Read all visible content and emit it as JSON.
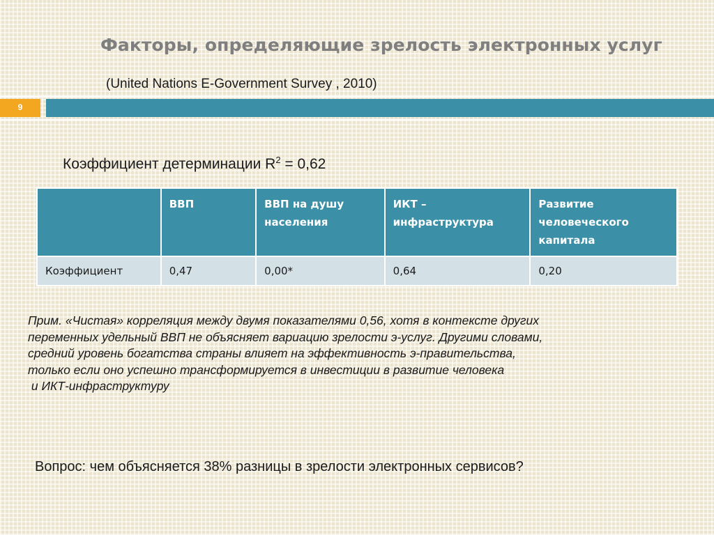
{
  "slide": {
    "title": "Факторы, определяющие  зрелость электронных услуг",
    "subtitle": "(United Nations E-Government Survey , 2010)",
    "page_number": "9"
  },
  "determination": {
    "text": "Коэффициент детерминации R",
    "superscript": "2",
    "value": " = 0,62"
  },
  "table": {
    "headers": [
      "",
      "ВВП",
      "ВВП на душу населения",
      "ИКТ – инфраструктура",
      "Развитие человеческого капитала"
    ],
    "rows": [
      [
        "Коэффициент",
        "0,47",
        "0,00*",
        "0,64",
        "0,20"
      ]
    ]
  },
  "note": {
    "lines": [
      "Прим. «Чистая» корреляция между двумя показателями 0,56, хотя  в контексте других",
      "переменных удельный ВВП не объясняет вариацию зрелости э-услуг.   Другими словами,",
      "средний уровень богатства страны влияет на эффективность э-правительства,",
      "только если оно успешно  трансформируется в инвестиции в развитие человека",
      " и ИКТ-инфраструктуру"
    ]
  },
  "question": "Вопрос: чем объясняется 38% разницы в зрелости электронных сервисов?",
  "colors": {
    "accent_teal": "#3b8fa6",
    "accent_orange": "#f3a61f",
    "table_body": "#d3e1e6",
    "title_gray": "#7f7f7f"
  }
}
